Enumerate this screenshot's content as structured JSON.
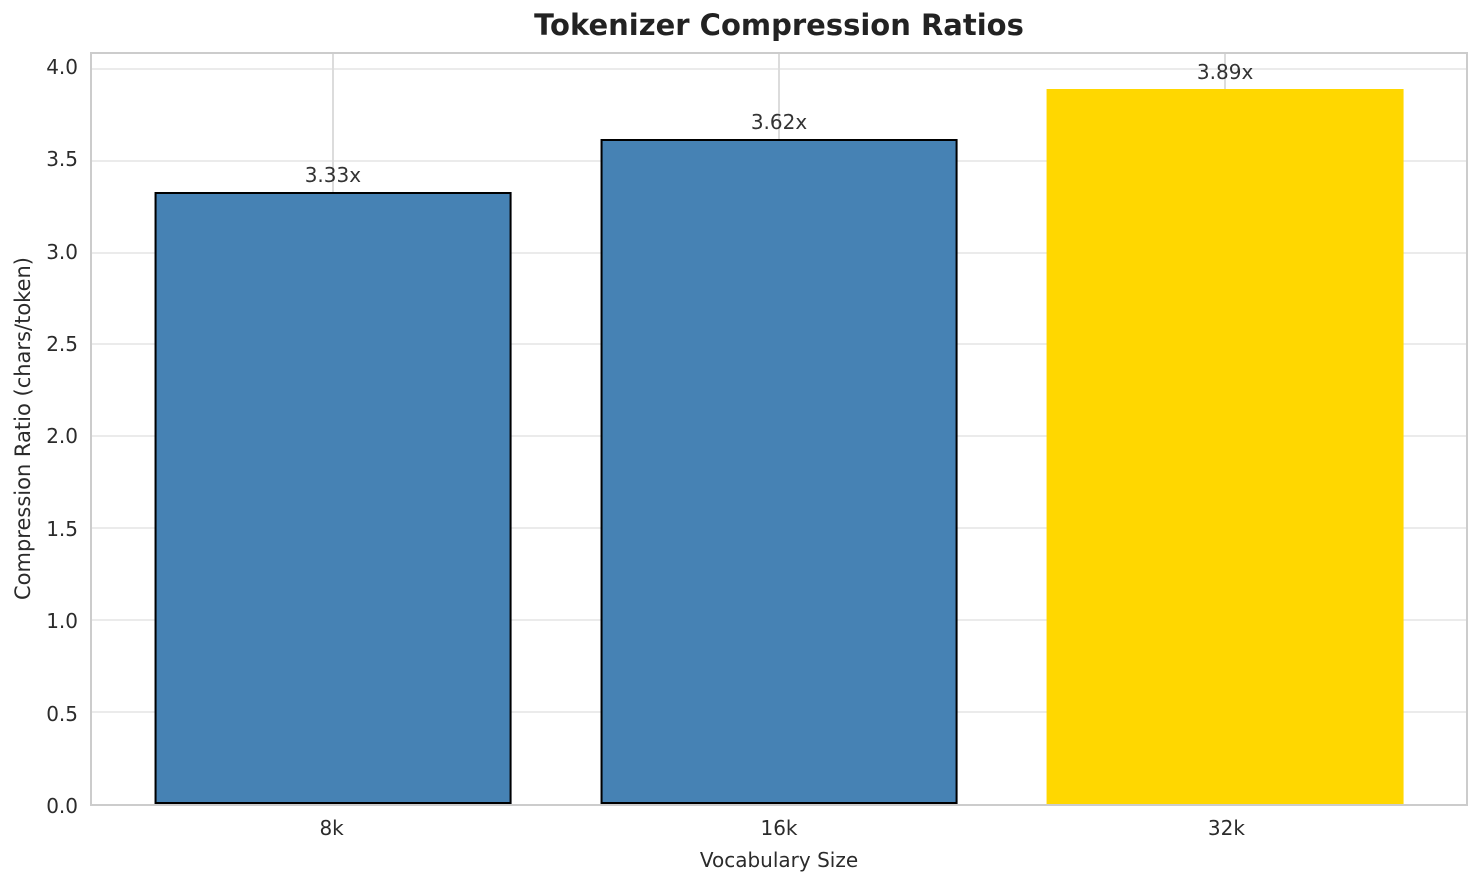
{
  "chart_data": {
    "type": "bar",
    "title": "Tokenizer Compression Ratios",
    "xlabel": "Vocabulary Size",
    "ylabel": "Compression Ratio (chars/token)",
    "categories": [
      "8k",
      "16k",
      "32k"
    ],
    "values": [
      3.33,
      3.62,
      3.89
    ],
    "value_labels": [
      "3.33x",
      "3.62x",
      "3.89x"
    ],
    "bar_colors": [
      "#4682b4",
      "#4682b4",
      "#ffd700"
    ],
    "bar_edge_colors": [
      "#000000",
      "#000000",
      "none"
    ],
    "x_positions": [
      0,
      1,
      2
    ],
    "xlim": [
      -0.54,
      2.54
    ],
    "bar_width": 0.8,
    "ylim": [
      0,
      4.08
    ],
    "yticks": [
      0.0,
      0.5,
      1.0,
      1.5,
      2.0,
      2.5,
      3.0,
      3.5,
      4.0
    ],
    "ytick_labels": [
      "0.0",
      "0.5",
      "1.0",
      "1.5",
      "2.0",
      "2.5",
      "3.0",
      "3.5",
      "4.0"
    ],
    "grid": true,
    "legend_position": "none"
  },
  "colors": {
    "background": "#ffffff",
    "horizontal_grid": "#ebebeb",
    "vertical_grid": "#dcdcdc",
    "spine": "#cccccc",
    "title_text": "#222222",
    "tick_text": "#2b2b2b",
    "value_label_text": "#333333",
    "steelblue_bar": "#4682b4",
    "gold_bar": "#ffd700",
    "bar_edge": "#000000"
  }
}
